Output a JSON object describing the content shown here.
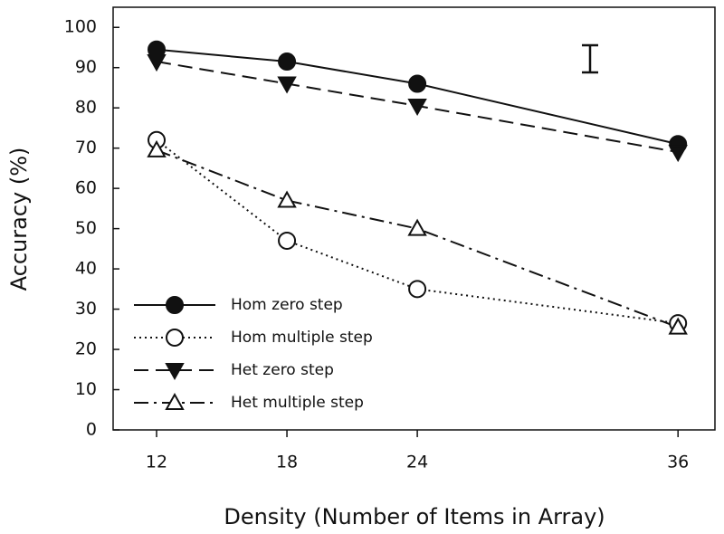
{
  "chart_data": {
    "type": "line",
    "x_label": "Density (Number of Items in Array)",
    "y_label": "Accuracy (%)",
    "x": [
      12,
      18,
      24,
      36
    ],
    "xlim": [
      10,
      37.7
    ],
    "xticks": [
      12,
      18,
      24,
      36
    ],
    "ylim": [
      0,
      105
    ],
    "yticks": [
      0,
      10,
      20,
      30,
      40,
      50,
      60,
      70,
      80,
      90,
      100
    ],
    "legend": "lower left",
    "series": [
      {
        "name": "Hom zero step",
        "color": "#111111",
        "marker": "circle",
        "filled": true,
        "dash": "solid",
        "values": [
          94.5,
          91.5,
          86,
          71
        ]
      },
      {
        "name": "Hom multiple step",
        "color": "#111111",
        "marker": "circle",
        "filled": false,
        "dash": "dotted",
        "values": [
          72,
          47,
          35,
          26.5
        ]
      },
      {
        "name": "Het zero step",
        "color": "#111111",
        "marker": "triangle-down",
        "filled": true,
        "dash": "dashed",
        "values": [
          91.5,
          86,
          80.5,
          69
        ]
      },
      {
        "name": "Het multiple step",
        "color": "#111111",
        "marker": "triangle-up",
        "filled": false,
        "dash": "dashdot",
        "values": [
          69.5,
          57,
          50,
          25.5
        ]
      }
    ]
  }
}
